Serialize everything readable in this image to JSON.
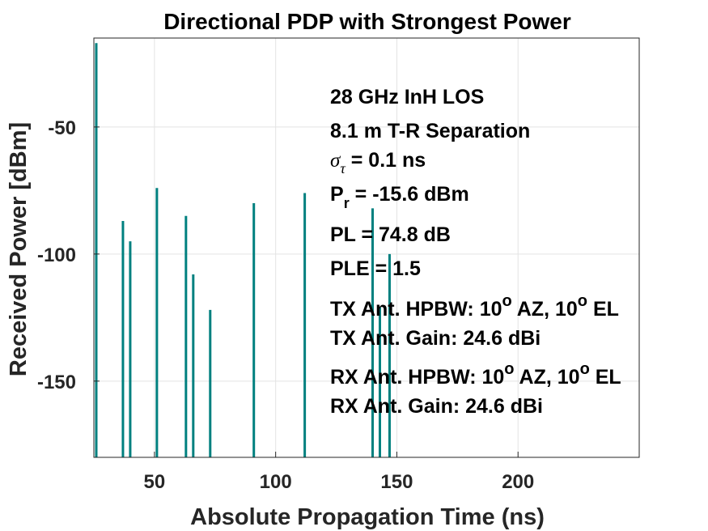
{
  "chart_data": {
    "type": "bar",
    "title": "Directional PDP with Strongest Power",
    "xlabel": "Absolute Propagation Time (ns)",
    "ylabel": "Received Power [dBm]",
    "xlim": [
      25,
      250
    ],
    "ylim": [
      -180,
      -15
    ],
    "x_ticks": [
      50,
      100,
      150,
      200
    ],
    "y_ticks": [
      -50,
      -100,
      -150
    ],
    "grid": true,
    "baseline": -180,
    "bar_color": "#00807f",
    "x": [
      26,
      37,
      40,
      51,
      63,
      66,
      73,
      91,
      112,
      140,
      143,
      147
    ],
    "values": [
      -17,
      -87,
      -95,
      -74,
      -85,
      -108,
      -122,
      -80,
      -76,
      -82,
      -121,
      -100
    ],
    "annotations": {
      "line1": "28 GHz InH LOS",
      "line2": "8.1 m T-R Separation",
      "line3_symbol": "σ",
      "line3_subscript": "τ",
      "line3_value": " = 0.1 ns",
      "line4_prefix": "P",
      "line4_subscript": "r",
      "line4_value": " = -15.6 dBm",
      "line5": "PL = 74.8 dB",
      "line6": "PLE = 1.5",
      "line7_a": "TX Ant. HPBW: 10",
      "line7_sup": "o",
      "line7_b": " AZ, 10",
      "line7_c": " EL",
      "line8": "TX Ant. Gain: 24.6 dBi",
      "line9_a": "RX Ant. HPBW: 10",
      "line9_sup": "o",
      "line9_b": " AZ, 10",
      "line9_c": " EL",
      "line10": "RX Ant. Gain: 24.6 dBi"
    }
  }
}
